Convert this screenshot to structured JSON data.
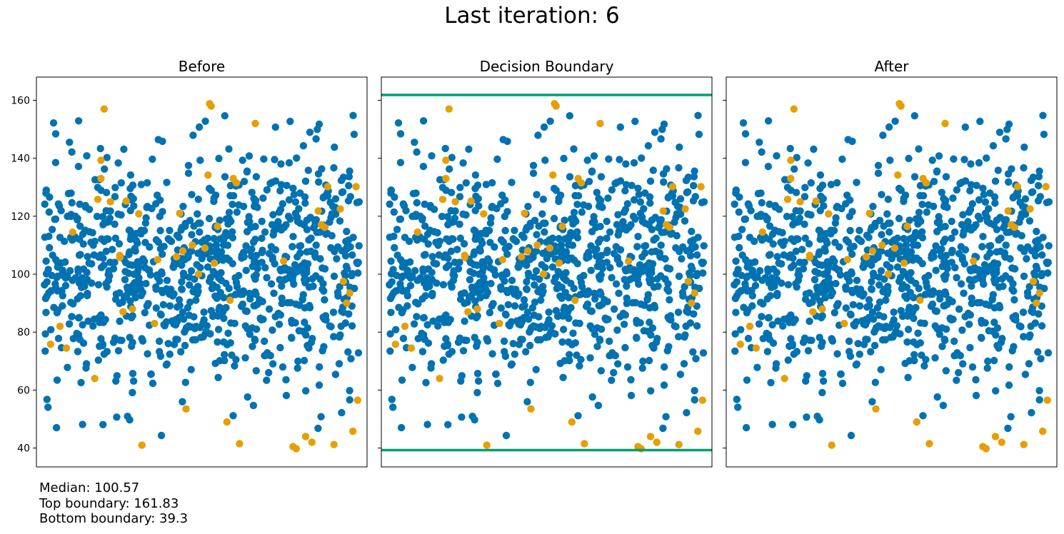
{
  "chart_data": {
    "type": "scatter",
    "suptitle": "Last iteration: 6",
    "panels": [
      {
        "title": "Before",
        "show_boundaries": false
      },
      {
        "title": "Decision Boundary",
        "show_boundaries": true
      },
      {
        "title": "After",
        "show_boundaries": false
      }
    ],
    "ylim": [
      33.5,
      168
    ],
    "y_ticks": [
      40,
      60,
      80,
      100,
      120,
      140,
      160
    ],
    "x_ticks_visible": false,
    "grid": false,
    "n_points": 1000,
    "colors": {
      "inlier": "#0072B2",
      "outlier": "#E69F00",
      "boundary": "#009E73"
    },
    "boundaries": {
      "top": 161.83,
      "bottom": 39.3
    },
    "outliers": [
      [
        0.02,
        75.8
      ],
      [
        0.05,
        82
      ],
      [
        0.07,
        74.5
      ],
      [
        0.09,
        114.5
      ],
      [
        0.16,
        64
      ],
      [
        0.17,
        125.8
      ],
      [
        0.18,
        133
      ],
      [
        0.18,
        139.3
      ],
      [
        0.19,
        157
      ],
      [
        0.21,
        125
      ],
      [
        0.24,
        105.8
      ],
      [
        0.24,
        106.5
      ],
      [
        0.25,
        87
      ],
      [
        0.26,
        125.2
      ],
      [
        0.28,
        88
      ],
      [
        0.3,
        120.8
      ],
      [
        0.31,
        41
      ],
      [
        0.35,
        83
      ],
      [
        0.36,
        105
      ],
      [
        0.42,
        106
      ],
      [
        0.43,
        121
      ],
      [
        0.44,
        108
      ],
      [
        0.45,
        53.5
      ],
      [
        0.47,
        110
      ],
      [
        0.49,
        100
      ],
      [
        0.51,
        109
      ],
      [
        0.52,
        134.2
      ],
      [
        0.525,
        158.8
      ],
      [
        0.53,
        158
      ],
      [
        0.54,
        103.8
      ],
      [
        0.55,
        116.5
      ],
      [
        0.58,
        49
      ],
      [
        0.59,
        91
      ],
      [
        0.6,
        133
      ],
      [
        0.61,
        131.5
      ],
      [
        0.62,
        41.5
      ],
      [
        0.67,
        152
      ],
      [
        0.76,
        104.5
      ],
      [
        0.79,
        40.5
      ],
      [
        0.8,
        39.8
      ],
      [
        0.83,
        44
      ],
      [
        0.85,
        42
      ],
      [
        0.87,
        121.8
      ],
      [
        0.88,
        117
      ],
      [
        0.89,
        116.2
      ],
      [
        0.9,
        130.2
      ],
      [
        0.92,
        41.2
      ],
      [
        0.94,
        122.5
      ],
      [
        0.95,
        97.5
      ],
      [
        0.96,
        90
      ],
      [
        0.97,
        93.5
      ],
      [
        0.98,
        45.8
      ],
      [
        0.99,
        130.2
      ],
      [
        0.995,
        56.5
      ]
    ]
  },
  "stats": {
    "median": "Median: 100.57",
    "top": "Top boundary: 161.83",
    "bottom": "Bottom boundary: 39.3"
  }
}
